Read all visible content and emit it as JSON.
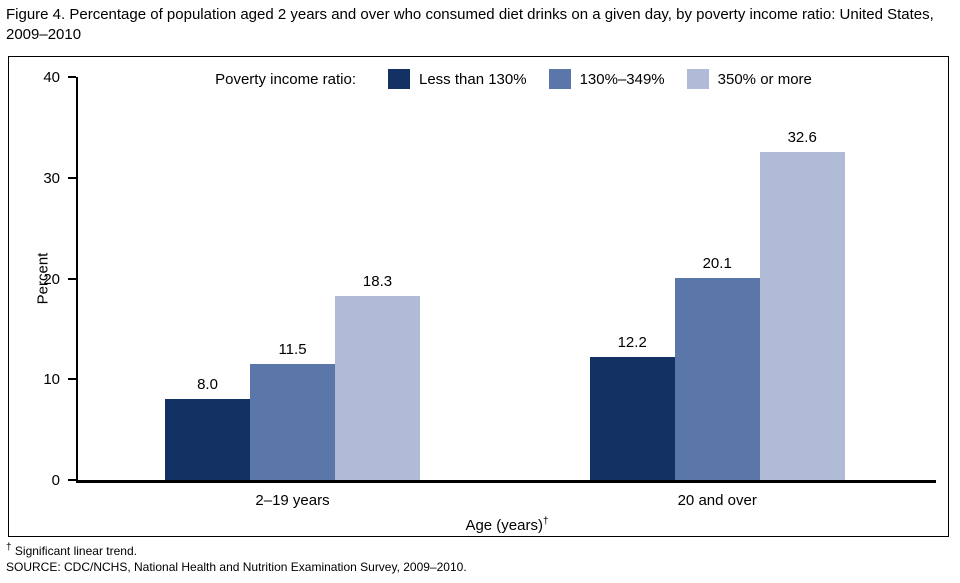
{
  "chart_data": {
    "type": "bar",
    "title": "Figure 4. Percentage of population aged 2 years and over who consumed diet drinks on a given day, by poverty income ratio: United States, 2009–2010",
    "legend": {
      "label": "Poverty income ratio:",
      "position": "top-center"
    },
    "categories": [
      "2–19 years",
      "20 and over"
    ],
    "series": [
      {
        "name": "Less than 130%",
        "color": "#133263",
        "values": [
          8.0,
          12.2
        ]
      },
      {
        "name": "130%–349%",
        "color": "#5b76a8",
        "values": [
          11.5,
          20.1
        ]
      },
      {
        "name": "350% or more",
        "color": "#afbbd7",
        "values": [
          18.3,
          32.6
        ]
      }
    ],
    "value_labels": [
      [
        "8.0",
        "11.5",
        "18.3"
      ],
      [
        "12.2",
        "20.1",
        "32.6"
      ]
    ],
    "xlabel": "Age (years)",
    "xlabel_sup": "†",
    "ylabel": "Percent",
    "ylim": [
      0,
      40
    ],
    "yticks": [
      0,
      10,
      20,
      30,
      40
    ],
    "grid": "off"
  },
  "footnotes": {
    "note_sup": "†",
    "note": " Significant linear trend.",
    "source": "SOURCE: CDC/NCHS, National Health and Nutrition Examination Survey, 2009–2010."
  }
}
